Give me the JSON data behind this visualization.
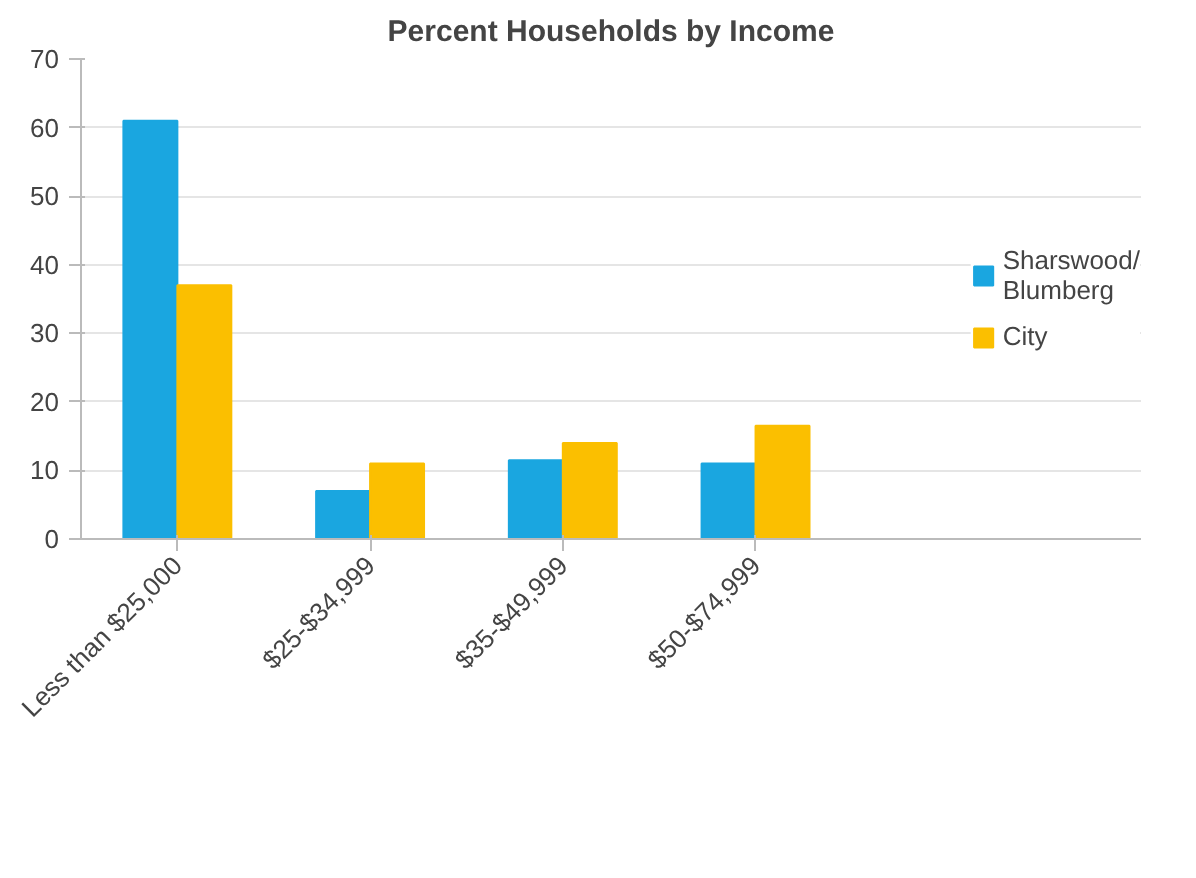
{
  "chart_data": {
    "type": "bar",
    "title": "Percent Households by Income",
    "categories": [
      "Less than $25,000",
      "$25-$34,999",
      "$35-$49,999",
      "$50-$74,999"
    ],
    "series": [
      {
        "name": "Sharswood/ Blumberg",
        "color": "#1aa6e0",
        "values": [
          61,
          7,
          11.5,
          11
        ]
      },
      {
        "name": "City",
        "color": "#fbbf00",
        "values": [
          37,
          11,
          14,
          16.5
        ]
      }
    ],
    "ylim": [
      0,
      70
    ],
    "yticks": [
      0,
      10,
      20,
      30,
      40,
      50,
      60,
      70
    ],
    "grid": "y",
    "legend": "right"
  }
}
